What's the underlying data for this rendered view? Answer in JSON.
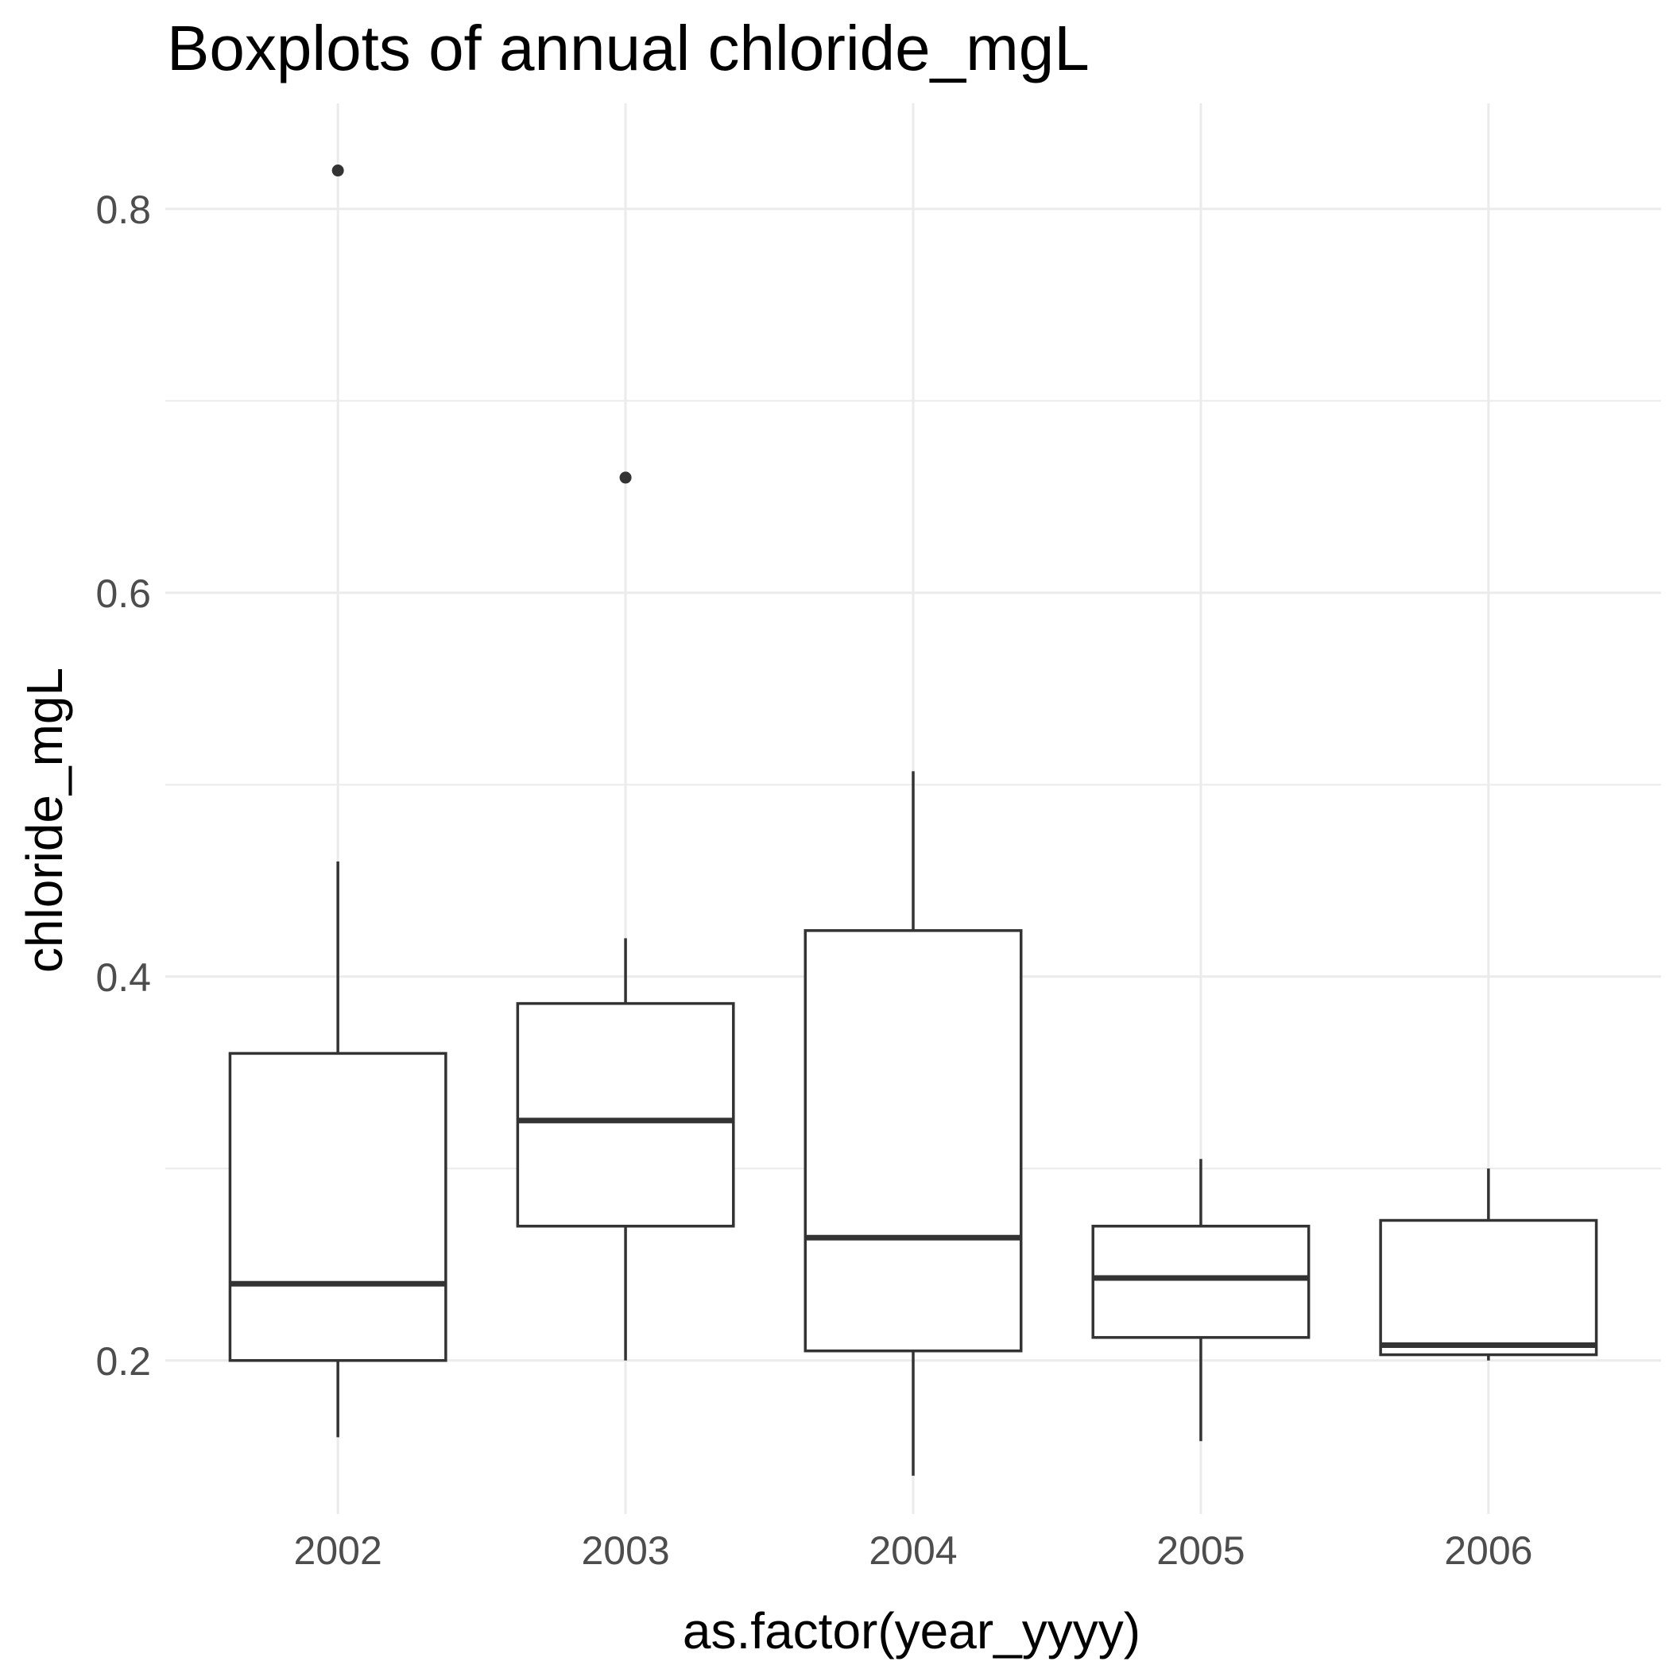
{
  "chart_data": {
    "type": "boxplot",
    "title": "Boxplots of annual chloride_mgL",
    "xlabel": "as.factor(year_yyyy)",
    "ylabel": "chloride_mgL",
    "categories": [
      "2002",
      "2003",
      "2004",
      "2005",
      "2006"
    ],
    "ylim": [
      0.12,
      0.855
    ],
    "yticks": [
      0.2,
      0.4,
      0.6,
      0.8
    ],
    "ytick_labels": [
      "0.2",
      "0.4",
      "0.6",
      "0.8"
    ],
    "yminor": [
      0.3,
      0.5,
      0.7
    ],
    "grid": true,
    "boxes": [
      {
        "category": "2002",
        "whisker_low": 0.16,
        "q1": 0.2,
        "median": 0.24,
        "q3": 0.36,
        "whisker_high": 0.46,
        "outliers": [
          0.82
        ]
      },
      {
        "category": "2003",
        "whisker_low": 0.2,
        "q1": 0.27,
        "median": 0.325,
        "q3": 0.386,
        "whisker_high": 0.42,
        "outliers": [
          0.66
        ]
      },
      {
        "category": "2004",
        "whisker_low": 0.14,
        "q1": 0.205,
        "median": 0.264,
        "q3": 0.424,
        "whisker_high": 0.507,
        "outliers": []
      },
      {
        "category": "2005",
        "whisker_low": 0.158,
        "q1": 0.212,
        "median": 0.243,
        "q3": 0.27,
        "whisker_high": 0.305,
        "outliers": []
      },
      {
        "category": "2006",
        "whisker_low": 0.2,
        "q1": 0.203,
        "median": 0.208,
        "q3": 0.273,
        "whisker_high": 0.3,
        "outliers": []
      }
    ]
  }
}
